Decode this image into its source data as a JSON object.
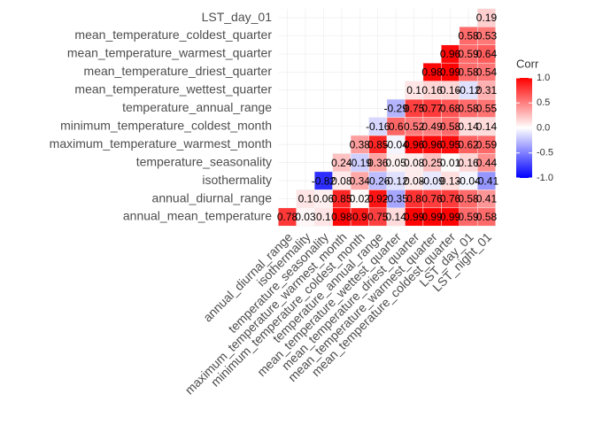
{
  "chart_data": {
    "type": "heatmap",
    "x": [
      "annual_diurnal_range",
      "isothermality",
      "temperature_seasonality",
      "maximum_temperature_warmest_month",
      "minimum_temperature_coldest_month",
      "temperature_annual_range",
      "mean_temperature_wettest_quarter",
      "mean_temperature_driest_quarter",
      "mean_temperature_warmest_quarter",
      "mean_temperature_coldest_quarter",
      "LST_day_01",
      "LST_night_01"
    ],
    "y": [
      "annual_mean_temperature",
      "annual_diurnal_range",
      "isothermality",
      "temperature_seasonality",
      "maximum_temperature_warmest_month",
      "minimum_temperature_coldest_month",
      "temperature_annual_range",
      "mean_temperature_wettest_quarter",
      "mean_temperature_driest_quarter",
      "mean_temperature_warmest_quarter",
      "mean_temperature_coldest_quarter",
      "LST_day_01"
    ],
    "values": [
      [
        0.78,
        0.03,
        0.1,
        0.98,
        0.9,
        0.75,
        0.14,
        0.99,
        0.99,
        0.99,
        0.59,
        0.58
      ],
      [
        null,
        0.1,
        0.06,
        0.85,
        0.02,
        0.92,
        -0.35,
        0.8,
        0.76,
        0.76,
        0.58,
        0.41
      ],
      [
        null,
        null,
        -0.82,
        0.08,
        0.34,
        -0.26,
        -0.12,
        0.08,
        -0.09,
        0.13,
        -0.04,
        -0.41
      ],
      [
        null,
        null,
        null,
        0.24,
        -0.19,
        0.36,
        0.05,
        0.08,
        0.25,
        0.01,
        0.16,
        0.44
      ],
      [
        null,
        null,
        null,
        null,
        0.38,
        0.85,
        -0.04,
        0.96,
        0.96,
        0.95,
        0.62,
        0.59
      ],
      [
        null,
        null,
        null,
        null,
        null,
        -0.16,
        0.6,
        0.52,
        0.49,
        0.58,
        0.14,
        0.14
      ],
      [
        null,
        null,
        null,
        null,
        null,
        null,
        -0.29,
        0.75,
        0.77,
        0.68,
        0.58,
        0.55
      ],
      [
        null,
        null,
        null,
        null,
        null,
        null,
        null,
        0.1,
        0.16,
        0.16,
        -0.12,
        0.31
      ],
      [
        null,
        null,
        null,
        null,
        null,
        null,
        null,
        null,
        0.98,
        0.99,
        0.58,
        0.54
      ],
      [
        null,
        null,
        null,
        null,
        null,
        null,
        null,
        null,
        null,
        0.96,
        0.59,
        0.64
      ],
      [
        null,
        null,
        null,
        null,
        null,
        null,
        null,
        null,
        null,
        null,
        0.58,
        0.53
      ],
      [
        null,
        null,
        null,
        null,
        null,
        null,
        null,
        null,
        null,
        null,
        null,
        0.19
      ]
    ],
    "colors": [
      "#0000FF",
      "#FFFFFF",
      "#FF0000"
    ],
    "legend_title": "Corr",
    "clim": [
      -1,
      1
    ],
    "cticks": [
      {
        "value": 1,
        "label": "1.0"
      },
      {
        "value": 0.5,
        "label": "0.5"
      },
      {
        "value": 0,
        "label": "0.0"
      },
      {
        "value": -0.5,
        "label": "-0.5"
      },
      {
        "value": -1,
        "label": "-1.0"
      }
    ]
  }
}
